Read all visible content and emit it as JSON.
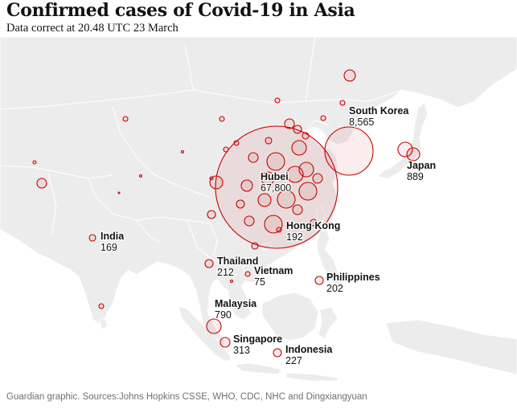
{
  "header": {
    "title": "Confirmed cases of Covid-19 in Asia",
    "subtitle": "Data correct at 20.48 UTC 23 March"
  },
  "footer": {
    "source": "Guardian graphic. Sources:Johns Hopkins CSSE, WHO, CDC, NHC and Dingxiangyuan"
  },
  "colors": {
    "land": "#ececec",
    "border": "#ffffff",
    "bubble_stroke": "#c70000",
    "bubble_fill": "rgba(199,0,0,0.07)"
  },
  "labels": [
    {
      "name": "South Korea",
      "value": "8,565"
    },
    {
      "name": "Japan",
      "value": "889"
    },
    {
      "name": "Hubei",
      "value": "67,800"
    },
    {
      "name": "Hong Kong",
      "value": "192"
    },
    {
      "name": "India",
      "value": "169"
    },
    {
      "name": "Thailand",
      "value": "212"
    },
    {
      "name": "Vietnam",
      "value": "75"
    },
    {
      "name": "Philippines",
      "value": "202"
    },
    {
      "name": "Malaysia",
      "value": "790"
    },
    {
      "name": "Singapore",
      "value": "313"
    },
    {
      "name": "Indonesia",
      "value": "227"
    }
  ]
}
